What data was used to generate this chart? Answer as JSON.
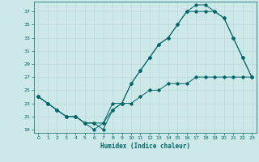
{
  "xlabel": "Humidex (Indice chaleur)",
  "bg_color": "#cce8e8",
  "grid_color": "#c0d8d8",
  "line_color": "#006666",
  "xlim": [
    -0.5,
    23.5
  ],
  "ylim": [
    18.5,
    38.5
  ],
  "xticks": [
    0,
    1,
    2,
    3,
    4,
    5,
    6,
    7,
    8,
    9,
    10,
    11,
    12,
    13,
    14,
    15,
    16,
    17,
    18,
    19,
    20,
    21,
    22,
    23
  ],
  "yticks": [
    19,
    21,
    23,
    25,
    27,
    29,
    31,
    33,
    35,
    37
  ],
  "series1_x": [
    0,
    1,
    2,
    3,
    4,
    5,
    6,
    7,
    8,
    9,
    10,
    11,
    12,
    13,
    14,
    15,
    16,
    17,
    18,
    19,
    20,
    21,
    22,
    23
  ],
  "series1_y": [
    24,
    23,
    22,
    21,
    21,
    20,
    20,
    19,
    22,
    23,
    23,
    24,
    25,
    25,
    26,
    26,
    26,
    27,
    27,
    27,
    27,
    27,
    27,
    27
  ],
  "series2_x": [
    0,
    1,
    2,
    3,
    4,
    5,
    6,
    7,
    8,
    9,
    10,
    11,
    12,
    13,
    14,
    15,
    16,
    17,
    18,
    19,
    20,
    21,
    22,
    23
  ],
  "series2_y": [
    24,
    23,
    22,
    21,
    21,
    20,
    20,
    20,
    23,
    23,
    26,
    28,
    30,
    32,
    33,
    35,
    37,
    37,
    37,
    37,
    36,
    33,
    30,
    27
  ],
  "series3_x": [
    0,
    1,
    2,
    3,
    4,
    5,
    6,
    7,
    8,
    9,
    10,
    11,
    12,
    13,
    14,
    15,
    16,
    17,
    18,
    19,
    20,
    21,
    22,
    23
  ],
  "series3_y": [
    24,
    23,
    22,
    21,
    21,
    20,
    19,
    20,
    22,
    23,
    26,
    28,
    30,
    32,
    33,
    35,
    37,
    38,
    38,
    37,
    36,
    33,
    30,
    27
  ]
}
